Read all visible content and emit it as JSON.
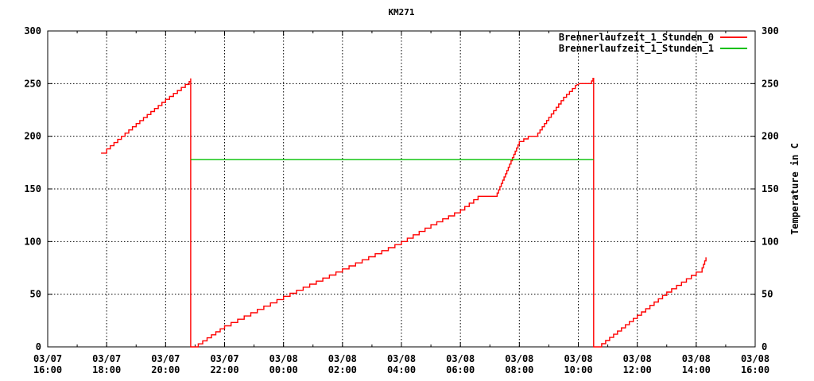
{
  "chart_data": {
    "type": "line",
    "title": "KM271",
    "ylabel_right": "Temperature in C",
    "xlim_hours": [
      0,
      24
    ],
    "ylim": [
      0,
      300
    ],
    "grid": true,
    "legend_position": "top-right-inside",
    "background_color": "#ffffff",
    "axis_color": "#000000",
    "x_ticks": [
      {
        "date": "03/07",
        "time": "16:00"
      },
      {
        "date": "03/07",
        "time": "18:00"
      },
      {
        "date": "03/07",
        "time": "20:00"
      },
      {
        "date": "03/07",
        "time": "22:00"
      },
      {
        "date": "03/08",
        "time": "00:00"
      },
      {
        "date": "03/08",
        "time": "02:00"
      },
      {
        "date": "03/08",
        "time": "04:00"
      },
      {
        "date": "03/08",
        "time": "06:00"
      },
      {
        "date": "03/08",
        "time": "08:00"
      },
      {
        "date": "03/08",
        "time": "10:00"
      },
      {
        "date": "03/08",
        "time": "12:00"
      },
      {
        "date": "03/08",
        "time": "14:00"
      },
      {
        "date": "03/08",
        "time": "16:00"
      }
    ],
    "x_minor_tick_every_hours": 1,
    "y_ticks": [
      0,
      50,
      100,
      150,
      200,
      250,
      300
    ],
    "series": [
      {
        "name": "Brennerlaufzeit_1_Stunden_0",
        "color": "#ff0000",
        "style": "steps",
        "step_quantum": 3,
        "points_hours_value": [
          [
            1.81,
            184
          ],
          [
            2.0,
            188
          ],
          [
            3.0,
            212
          ],
          [
            4.0,
            235
          ],
          [
            4.8,
            252
          ],
          [
            4.85,
            255
          ],
          [
            4.85,
            0
          ],
          [
            4.96,
            0
          ],
          [
            6.0,
            20
          ],
          [
            8.0,
            48
          ],
          [
            10.0,
            74
          ],
          [
            12.0,
            100
          ],
          [
            13.0,
            116
          ],
          [
            14.0,
            130
          ],
          [
            14.6,
            143
          ],
          [
            15.2,
            143
          ],
          [
            16.0,
            195
          ],
          [
            16.3,
            200
          ],
          [
            16.55,
            200
          ],
          [
            17.0,
            218
          ],
          [
            17.5,
            237
          ],
          [
            17.9,
            248
          ],
          [
            18.05,
            250
          ],
          [
            18.4,
            250
          ],
          [
            18.5,
            255
          ],
          [
            18.52,
            255
          ],
          [
            18.52,
            0
          ],
          [
            18.66,
            0
          ],
          [
            20.0,
            30
          ],
          [
            21.0,
            52
          ],
          [
            22.0,
            71
          ],
          [
            22.2,
            75
          ],
          [
            22.33,
            85
          ]
        ]
      },
      {
        "name": "Brennerlaufzeit_1_Stunden_1",
        "color": "#00c000",
        "style": "line",
        "points_hours_value": [
          [
            4.85,
            178
          ],
          [
            18.52,
            178
          ]
        ]
      }
    ]
  }
}
